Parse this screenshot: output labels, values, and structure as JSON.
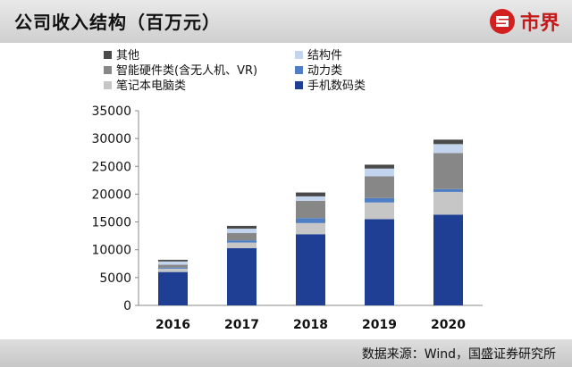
{
  "header": {
    "title": "公司收入结构（百万元）",
    "logo_text": "市界"
  },
  "footer": {
    "source": "数据来源：Wind，国盛证券研究所"
  },
  "chart_data": {
    "type": "bar",
    "stacked": true,
    "title": "公司收入结构（百万元）",
    "categories": [
      "2016",
      "2017",
      "2018",
      "2019",
      "2020"
    ],
    "ylim": [
      0,
      35000
    ],
    "yticks": [
      0,
      5000,
      10000,
      15000,
      20000,
      25000,
      30000,
      35000
    ],
    "grid": false,
    "legend": "top-left",
    "series": [
      {
        "name": "手机数码类",
        "color": "#1f3f95",
        "values": [
          6000,
          10300,
          12800,
          15500,
          16300
        ]
      },
      {
        "name": "笔记本电脑类",
        "color": "#c6c6c6",
        "values": [
          600,
          1000,
          2000,
          3000,
          4100
        ]
      },
      {
        "name": "动力类",
        "color": "#4f7ec4",
        "values": [
          200,
          400,
          900,
          800,
          500
        ]
      },
      {
        "name": "智能硬件类(含无人机、VR)",
        "color": "#878787",
        "values": [
          500,
          1300,
          3100,
          3900,
          6500
        ]
      },
      {
        "name": "结构件",
        "color": "#c3d5ee",
        "values": [
          600,
          800,
          800,
          1400,
          1600
        ]
      },
      {
        "name": "其他",
        "color": "#4a4a4a",
        "values": [
          300,
          500,
          700,
          700,
          800
        ]
      }
    ]
  }
}
